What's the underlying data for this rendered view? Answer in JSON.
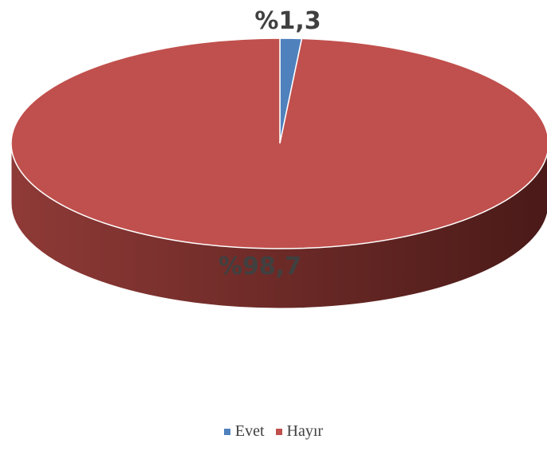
{
  "chart_data": {
    "type": "pie",
    "style": "3d",
    "categories": [
      "Evet",
      "Hayır"
    ],
    "values": [
      1.3,
      98.7
    ],
    "data_labels": [
      "%1,3",
      "%98,7"
    ],
    "colors": [
      "#4f81bd",
      "#c0504d"
    ],
    "legend_position": "bottom",
    "title": ""
  }
}
